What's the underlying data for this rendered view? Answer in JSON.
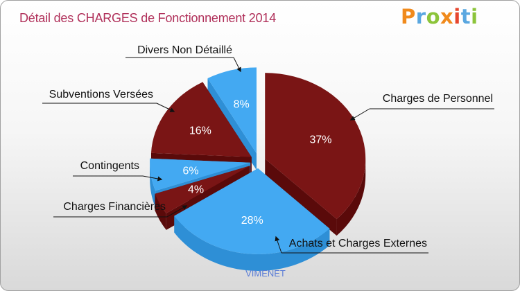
{
  "title": "Détail des CHARGES de Fonctionnement 2014",
  "logo": {
    "letters": [
      "P",
      "r",
      "o",
      "x",
      "i",
      "t",
      "i"
    ],
    "colors": [
      "#f08a1c",
      "#5aa7e0",
      "#8cc43a",
      "#f08a1c",
      "#e6462e",
      "#5aa7e0",
      "#8cc43a"
    ]
  },
  "colors": {
    "dark": "#7a1515",
    "dark_side": "#5a0a0a",
    "light": "#43a9f2",
    "light_side": "#2e8fd6"
  },
  "chart_data": {
    "type": "pie",
    "title": "Détail des CHARGES de Fonctionnement 2014",
    "subtitle": "VIMENET",
    "slices": [
      {
        "label": "Charges de Personnel",
        "value": 37,
        "pct_label": "37%",
        "color": "dark"
      },
      {
        "label": "Achats et Charges Externes",
        "value": 28,
        "pct_label": "28%",
        "color": "light"
      },
      {
        "label": "Charges Financières",
        "value": 4,
        "pct_label": "4%",
        "color": "dark"
      },
      {
        "label": "Contingents",
        "value": 6,
        "pct_label": "6%",
        "color": "light"
      },
      {
        "label": "Subventions Versées",
        "value": 16,
        "pct_label": "16%",
        "color": "dark"
      },
      {
        "label": "Divers Non Détaillé",
        "value": 8,
        "pct_label": "8%",
        "color": "light"
      }
    ]
  }
}
